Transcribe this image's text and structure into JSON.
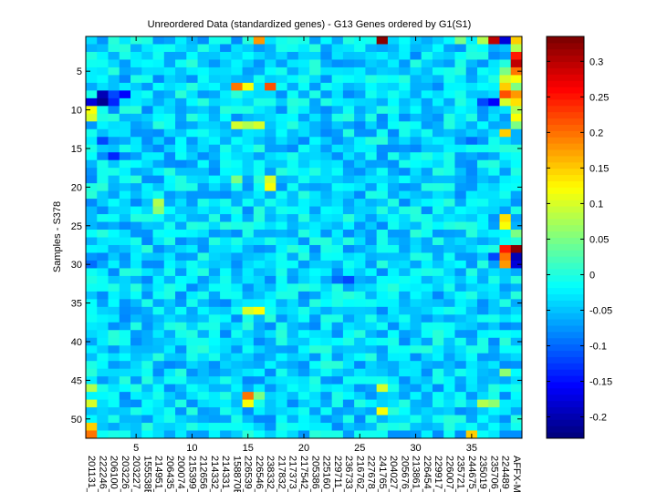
{
  "chart_data": {
    "type": "heatmap",
    "title": "Unreordered Data (standardized genes) - G13 Genes ordered by G1(S1)",
    "xlabel": "",
    "ylabel": "Samples - S378",
    "n_rows": 52,
    "n_cols": 39,
    "y_ticks": [
      5,
      10,
      15,
      20,
      25,
      30,
      35,
      40,
      45,
      50
    ],
    "x_ticks": [
      5,
      10,
      15,
      20,
      25,
      30,
      35
    ],
    "x_tick_labels": [
      "201131_",
      "222246_",
      "206100_",
      "203226_",
      "203227_",
      "155538E",
      "214951_",
      "206435_",
      "200074_",
      "215399_",
      "212656_",
      "214332_",
      "214331_",
      "158870E",
      "226539_",
      "226546_",
      "238332_",
      "217832_",
      "217373_",
      "217542_",
      "205386_",
      "225160_",
      "229711_",
      "236733_",
      "216762_",
      "227678_",
      "241765_",
      "204027_",
      "205676_",
      "213861_",
      "226454_",
      "229917_",
      "226007_",
      "235721_",
      "244675_",
      "235019_",
      "235706_",
      "224489_",
      "AFFX-M"
    ],
    "colorbar": {
      "min": -0.23,
      "max": 0.335,
      "ticks": [
        -0.2,
        -0.15,
        -0.1,
        -0.05,
        0,
        0.05,
        0.1,
        0.15,
        0.2,
        0.25,
        0.3
      ],
      "tick_labels": [
        "-0.2",
        "-0.15",
        "-0.1",
        "-0.05",
        "0",
        "0.05",
        "0.1",
        "0.15",
        "0.2",
        "0.25",
        "0.3"
      ],
      "colormap": "jet"
    },
    "base_value": -0.04,
    "cells": [
      {
        "r": 1,
        "c": 16,
        "v": 0.18
      },
      {
        "r": 1,
        "c": 27,
        "v": 0.33
      },
      {
        "r": 1,
        "c": 34,
        "v": 0.05
      },
      {
        "r": 1,
        "c": 36,
        "v": 0.08
      },
      {
        "r": 1,
        "c": 37,
        "v": 0.3
      },
      {
        "r": 1,
        "c": 38,
        "v": -0.18
      },
      {
        "r": 1,
        "c": 39,
        "v": 0.15
      },
      {
        "r": 2,
        "c": 39,
        "v": 0.08
      },
      {
        "r": 3,
        "c": 39,
        "v": 0.25
      },
      {
        "r": 4,
        "c": 39,
        "v": 0.3
      },
      {
        "r": 5,
        "c": 38,
        "v": 0.05
      },
      {
        "r": 5,
        "c": 39,
        "v": 0.2
      },
      {
        "r": 6,
        "c": 38,
        "v": 0.1
      },
      {
        "r": 6,
        "c": 39,
        "v": 0.12
      },
      {
        "r": 7,
        "c": 14,
        "v": 0.2
      },
      {
        "r": 7,
        "c": 15,
        "v": 0.12
      },
      {
        "r": 7,
        "c": 17,
        "v": 0.22
      },
      {
        "r": 7,
        "c": 38,
        "v": 0.15
      },
      {
        "r": 7,
        "c": 39,
        "v": 0.05
      },
      {
        "r": 8,
        "c": 2,
        "v": -0.2
      },
      {
        "r": 8,
        "c": 3,
        "v": -0.12
      },
      {
        "r": 8,
        "c": 4,
        "v": -0.16
      },
      {
        "r": 8,
        "c": 38,
        "v": 0.22
      },
      {
        "r": 8,
        "c": 39,
        "v": 0.18
      },
      {
        "r": 9,
        "c": 1,
        "v": -0.18
      },
      {
        "r": 9,
        "c": 2,
        "v": -0.22
      },
      {
        "r": 9,
        "c": 3,
        "v": -0.14
      },
      {
        "r": 9,
        "c": 36,
        "v": -0.12
      },
      {
        "r": 9,
        "c": 37,
        "v": -0.16
      },
      {
        "r": 9,
        "c": 38,
        "v": 0.1
      },
      {
        "r": 9,
        "c": 39,
        "v": 0.14
      },
      {
        "r": 10,
        "c": 1,
        "v": 0.12
      },
      {
        "r": 10,
        "c": 39,
        "v": 0.08
      },
      {
        "r": 11,
        "c": 1,
        "v": 0.1
      },
      {
        "r": 11,
        "c": 39,
        "v": 0.12
      },
      {
        "r": 12,
        "c": 14,
        "v": 0.1
      },
      {
        "r": 12,
        "c": 15,
        "v": 0.08
      },
      {
        "r": 12,
        "c": 16,
        "v": 0.1
      },
      {
        "r": 12,
        "c": 39,
        "v": 0.05
      },
      {
        "r": 13,
        "c": 38,
        "v": 0.15
      },
      {
        "r": 14,
        "c": 2,
        "v": -0.12
      },
      {
        "r": 14,
        "c": 35,
        "v": -0.1
      },
      {
        "r": 16,
        "c": 3,
        "v": -0.14
      },
      {
        "r": 19,
        "c": 14,
        "v": 0.05
      },
      {
        "r": 19,
        "c": 17,
        "v": 0.1
      },
      {
        "r": 20,
        "c": 17,
        "v": 0.12
      },
      {
        "r": 22,
        "c": 7,
        "v": 0.08
      },
      {
        "r": 23,
        "c": 7,
        "v": 0.06
      },
      {
        "r": 24,
        "c": 38,
        "v": 0.14
      },
      {
        "r": 25,
        "c": 38,
        "v": 0.12
      },
      {
        "r": 26,
        "c": 39,
        "v": 0.05
      },
      {
        "r": 28,
        "c": 38,
        "v": 0.25
      },
      {
        "r": 28,
        "c": 39,
        "v": 0.33
      },
      {
        "r": 29,
        "c": 37,
        "v": -0.12
      },
      {
        "r": 29,
        "c": 38,
        "v": 0.2
      },
      {
        "r": 29,
        "c": 39,
        "v": -0.2
      },
      {
        "r": 30,
        "c": 1,
        "v": -0.1
      },
      {
        "r": 30,
        "c": 38,
        "v": 0.18
      },
      {
        "r": 30,
        "c": 39,
        "v": -0.18
      },
      {
        "r": 32,
        "c": 23,
        "v": -0.1
      },
      {
        "r": 32,
        "c": 24,
        "v": -0.12
      },
      {
        "r": 36,
        "c": 15,
        "v": 0.1
      },
      {
        "r": 36,
        "c": 16,
        "v": 0.12
      },
      {
        "r": 44,
        "c": 38,
        "v": 0.06
      },
      {
        "r": 46,
        "c": 1,
        "v": 0.08
      },
      {
        "r": 46,
        "c": 27,
        "v": 0.1
      },
      {
        "r": 47,
        "c": 15,
        "v": 0.2
      },
      {
        "r": 47,
        "c": 16,
        "v": 0.05
      },
      {
        "r": 48,
        "c": 1,
        "v": 0.1
      },
      {
        "r": 48,
        "c": 15,
        "v": 0.12
      },
      {
        "r": 48,
        "c": 36,
        "v": 0.08
      },
      {
        "r": 48,
        "c": 37,
        "v": 0.06
      },
      {
        "r": 49,
        "c": 27,
        "v": 0.12
      },
      {
        "r": 51,
        "c": 1,
        "v": 0.15
      },
      {
        "r": 52,
        "c": 1,
        "v": 0.2
      },
      {
        "r": 52,
        "c": 35,
        "v": 0.15
      }
    ]
  }
}
